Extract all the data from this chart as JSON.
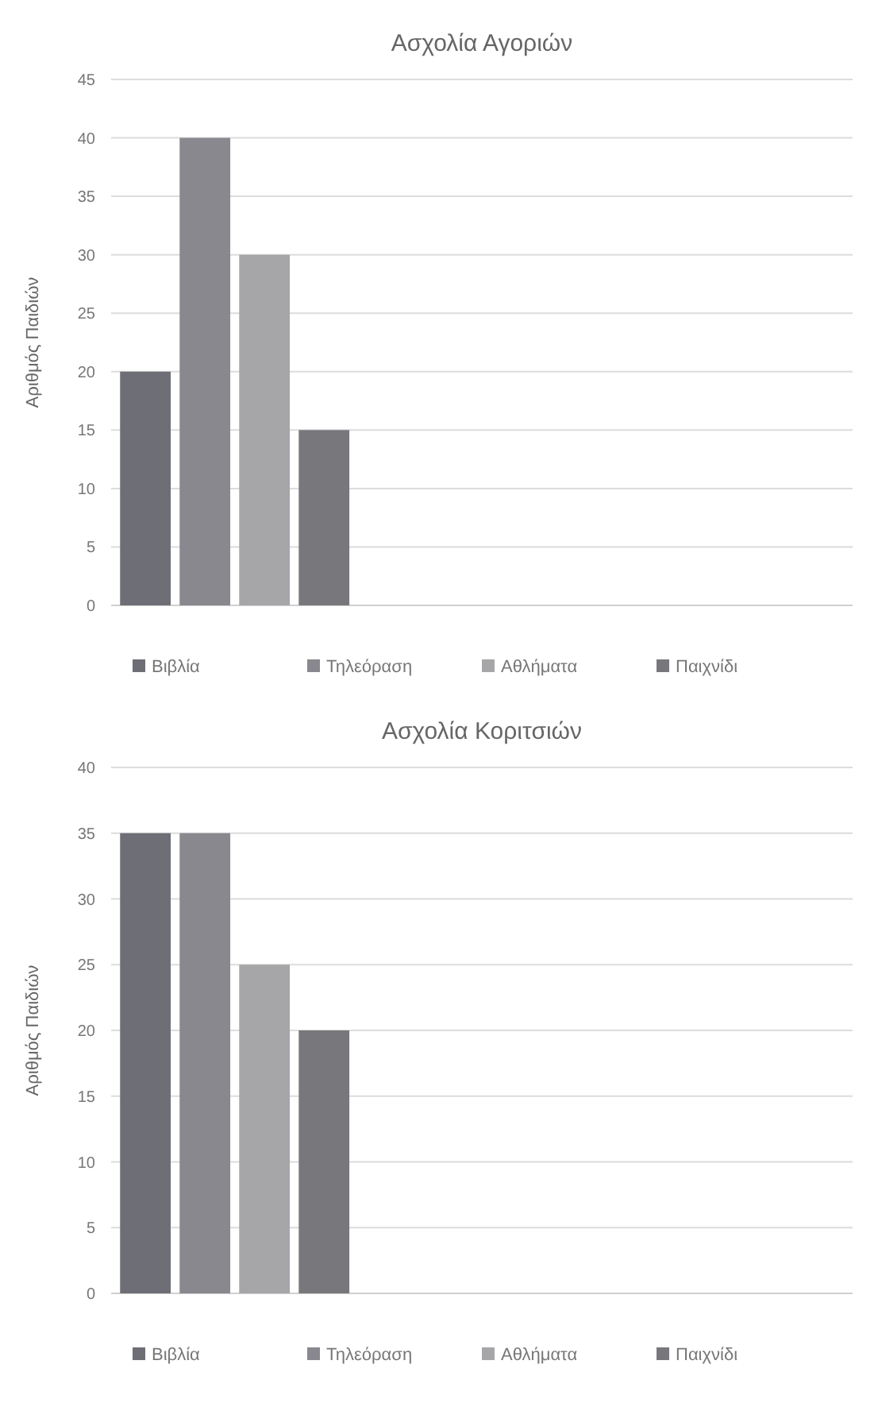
{
  "chart_data": [
    {
      "type": "bar",
      "title": "Ασχολία Αγοριών",
      "ylabel": "Αριθμός Παιδιών",
      "categories": [
        null,
        null,
        null
      ],
      "series": [
        {
          "name": "Βιβλία",
          "color": "#6e6e76",
          "values": [
            20,
            null,
            null
          ]
        },
        {
          "name": "Τηλεόραση",
          "color": "#88888e",
          "values": [
            40,
            null,
            null
          ]
        },
        {
          "name": "Αθλήματα",
          "color": "#a6a6a8",
          "values": [
            30,
            null,
            null
          ]
        },
        {
          "name": "Παιχνίδι",
          "color": "#78787c",
          "values": [
            15,
            null,
            null
          ]
        }
      ],
      "ylim": [
        0,
        45
      ],
      "yticks": [
        0,
        5,
        10,
        15,
        20,
        25,
        30,
        35,
        40,
        45
      ],
      "grid": "y",
      "legend": "bottom"
    },
    {
      "type": "bar",
      "title": "Ασχολία Κοριτσιών",
      "ylabel": "Αριθμός Παιδιών",
      "categories": [
        null,
        null,
        null
      ],
      "series": [
        {
          "name": "Βιβλία",
          "color": "#6e6e76",
          "values": [
            35,
            null,
            null
          ]
        },
        {
          "name": "Τηλεόραση",
          "color": "#88888e",
          "values": [
            35,
            null,
            null
          ]
        },
        {
          "name": "Αθλήματα",
          "color": "#a6a6a8",
          "values": [
            25,
            null,
            null
          ]
        },
        {
          "name": "Παιχνίδι",
          "color": "#78787c",
          "values": [
            20,
            null,
            null
          ]
        }
      ],
      "ylim": [
        0,
        40
      ],
      "yticks": [
        0,
        5,
        10,
        15,
        20,
        25,
        30,
        35,
        40
      ],
      "grid": "y",
      "legend": "bottom"
    }
  ]
}
